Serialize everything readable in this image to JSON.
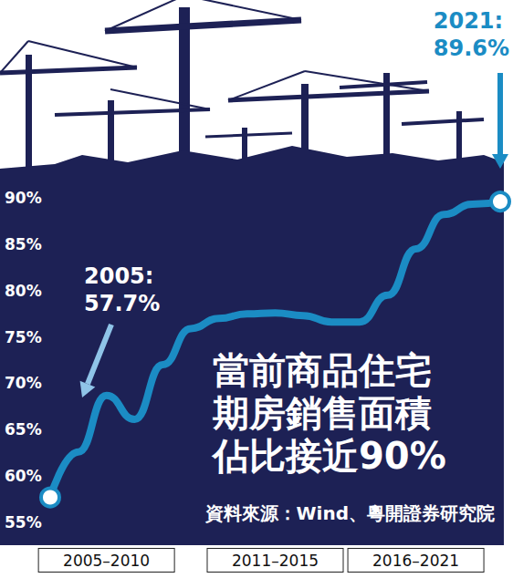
{
  "chart_data": {
    "type": "line",
    "title": "當前商品住宅期房銷售面積佔比接近90%",
    "source": "資料來源：Wind、粵開證券研究院",
    "categories": [
      null,
      null,
      "2005–2010",
      null,
      null,
      null,
      null,
      null,
      "2011–2015",
      null,
      null,
      null,
      null,
      "2016–2021",
      null,
      null,
      null
    ],
    "values": [
      57.7,
      62.6,
      68.7,
      66.1,
      72.0,
      75.9,
      77.0,
      77.5,
      77.6,
      77.3,
      76.6,
      76.6,
      79.5,
      84.5,
      88.2,
      89.3,
      89.6
    ],
    "color": "#1b8cc4",
    "marker": "circle",
    "ylim": [
      55,
      90
    ],
    "yticks": [
      {
        "value": 55,
        "label": "55%"
      },
      {
        "value": 60,
        "label": "60%"
      },
      {
        "value": 65,
        "label": "65%"
      },
      {
        "value": 70,
        "label": "70%"
      },
      {
        "value": 75,
        "label": "75%"
      },
      {
        "value": 80,
        "label": "80%"
      },
      {
        "value": 85,
        "label": "85%"
      },
      {
        "value": 90,
        "label": "90%"
      }
    ],
    "grid": false,
    "annotations": [
      "2005:\n57.7%",
      "2021:\n89.6%"
    ]
  }
}
